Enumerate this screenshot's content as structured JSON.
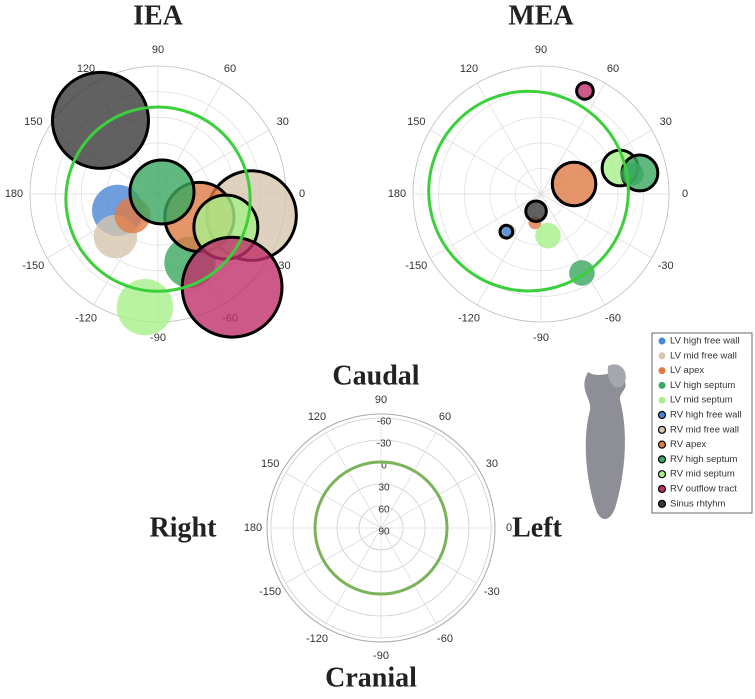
{
  "chart_data": [
    {
      "type": "polar-bubble",
      "title": "IEA",
      "angle_ticks": [
        0,
        30,
        60,
        90,
        120,
        150,
        180,
        -150,
        -120,
        -90,
        -60,
        -30
      ],
      "ring": {
        "angle": -90,
        "r": 0.04,
        "size": 0.72,
        "color": "#3ccf3c"
      },
      "points": [
        {
          "series": 11,
          "angle": 128,
          "r": 0.73,
          "size": 0.375
        },
        {
          "series": 0,
          "angle": -158,
          "r": 0.34,
          "size": 0.2
        },
        {
          "series": 1,
          "angle": -135,
          "r": 0.47,
          "size": 0.17
        },
        {
          "series": 2,
          "angle": -140,
          "r": 0.26,
          "size": 0.14
        },
        {
          "series": 3,
          "angle": -65,
          "r": 0.59,
          "size": 0.2
        },
        {
          "series": 4,
          "angle": -96.6,
          "r": 0.89,
          "size": 0.22
        },
        {
          "series": 6,
          "angle": -13,
          "r": 0.75,
          "size": 0.35
        },
        {
          "series": 7,
          "angle": -29,
          "r": 0.37,
          "size": 0.27
        },
        {
          "series": 9,
          "angle": -26,
          "r": 0.59,
          "size": 0.25
        },
        {
          "series": 10,
          "angle": -51.5,
          "r": 0.93,
          "size": 0.39
        },
        {
          "series": 8,
          "angle": 27,
          "r": 0.035,
          "size": 0.25
        }
      ]
    },
    {
      "type": "polar-bubble",
      "title": "MEA",
      "angle_ticks": [
        0,
        30,
        60,
        90,
        120,
        150,
        180,
        -150,
        -120,
        -90,
        -60,
        -30
      ],
      "ring": {
        "angle": 167,
        "r": 0.1,
        "size": 0.78,
        "color": "#3ccf3c"
      },
      "points": [
        {
          "series": 10,
          "angle": 66.9,
          "r": 0.875,
          "size": 0.065
        },
        {
          "series": 7,
          "angle": 16.9,
          "r": 0.27,
          "size": 0.17
        },
        {
          "series": 9,
          "angle": 18.2,
          "r": 0.65,
          "size": 0.14
        },
        {
          "series": 8,
          "angle": 12,
          "r": 0.79,
          "size": 0.14
        },
        {
          "series": 3,
          "angle": 12.4,
          "r": 0.73,
          "size": 0.09
        },
        {
          "series": 3,
          "angle": -62.6,
          "r": 0.695,
          "size": 0.1
        },
        {
          "series": 4,
          "angle": -80.5,
          "r": 0.33,
          "size": 0.1
        },
        {
          "series": 2,
          "angle": -102,
          "r": 0.23,
          "size": 0.05
        },
        {
          "series": 1,
          "angle": -130,
          "r": 0.38,
          "size": 0.05
        },
        {
          "series": 5,
          "angle": -132.6,
          "r": 0.4,
          "size": 0.05
        },
        {
          "series": 11,
          "angle": -106,
          "r": 0.14,
          "size": 0.08
        }
      ]
    },
    {
      "type": "polar-reference",
      "annotations": {
        "top": "Caudal",
        "bottom": "Cranial",
        "left": "Right",
        "right": "Left"
      },
      "angle_ticks": [
        0,
        30,
        60,
        90,
        120,
        150,
        180,
        -150,
        -120,
        -90,
        -60,
        -30
      ],
      "rlim": [
        90,
        -60
      ],
      "rticks": [
        90,
        60,
        30,
        0,
        -30,
        -60
      ],
      "ring": {
        "value": 0,
        "color": "#7ab35a"
      }
    }
  ],
  "legend": [
    {
      "name": "LV high free wall",
      "color": "#4a86d4",
      "edge": false
    },
    {
      "name": "LV mid free wall",
      "color": "#d6c6ae",
      "edge": false
    },
    {
      "name": "LV apex",
      "color": "#e07b45",
      "edge": false
    },
    {
      "name": "LV high septum",
      "color": "#3aa860",
      "edge": false
    },
    {
      "name": "LV mid septum",
      "color": "#a6f08a",
      "edge": false
    },
    {
      "name": "RV high free wall",
      "color": "#4a86d4",
      "edge": true
    },
    {
      "name": "RV mid free wall",
      "color": "#d6c6ae",
      "edge": true
    },
    {
      "name": "RV apex",
      "color": "#e07b45",
      "edge": true
    },
    {
      "name": "RV high septum",
      "color": "#3aa860",
      "edge": true
    },
    {
      "name": "RV mid septum",
      "color": "#a6f08a",
      "edge": true
    },
    {
      "name": "RV outflow tract",
      "color": "#c0306a",
      "edge": true
    },
    {
      "name": "Sinus rhtyhm",
      "color": "#3a3a3a",
      "edge": true
    }
  ]
}
